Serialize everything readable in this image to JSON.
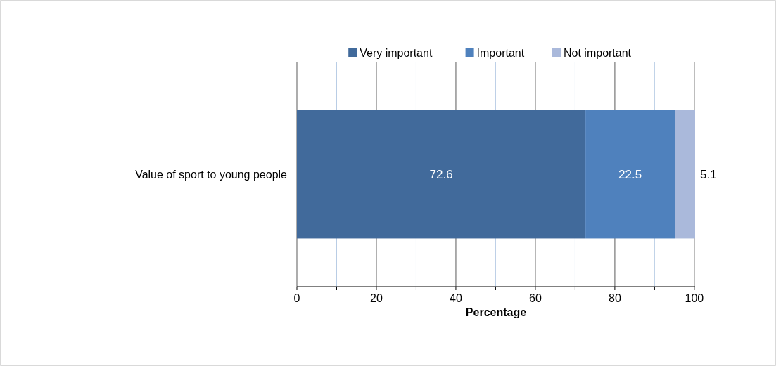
{
  "chart_data": {
    "type": "bar",
    "orientation": "horizontal",
    "stacked": true,
    "xlabel": "Percentage",
    "categories": [
      "Value of sport to young people"
    ],
    "series": [
      {
        "name": "Very important",
        "color": "#416a9b",
        "values": [
          72.6
        ]
      },
      {
        "name": "Important",
        "color": "#4f81bd",
        "values": [
          22.5
        ]
      },
      {
        "name": "Not important",
        "color": "#aab9db",
        "values": [
          5.1
        ]
      }
    ],
    "xlim": [
      0,
      100.2
    ],
    "xticks": [
      0,
      {
        "value": 10,
        "label": null
      },
      20,
      {
        "value": 30,
        "label": null
      },
      40,
      {
        "value": 50,
        "label": null
      },
      60,
      {
        "value": 70,
        "label": null
      },
      80,
      {
        "value": 90,
        "label": null
      },
      100
    ],
    "grid": "x",
    "legend": "top",
    "data_labels": true
  }
}
